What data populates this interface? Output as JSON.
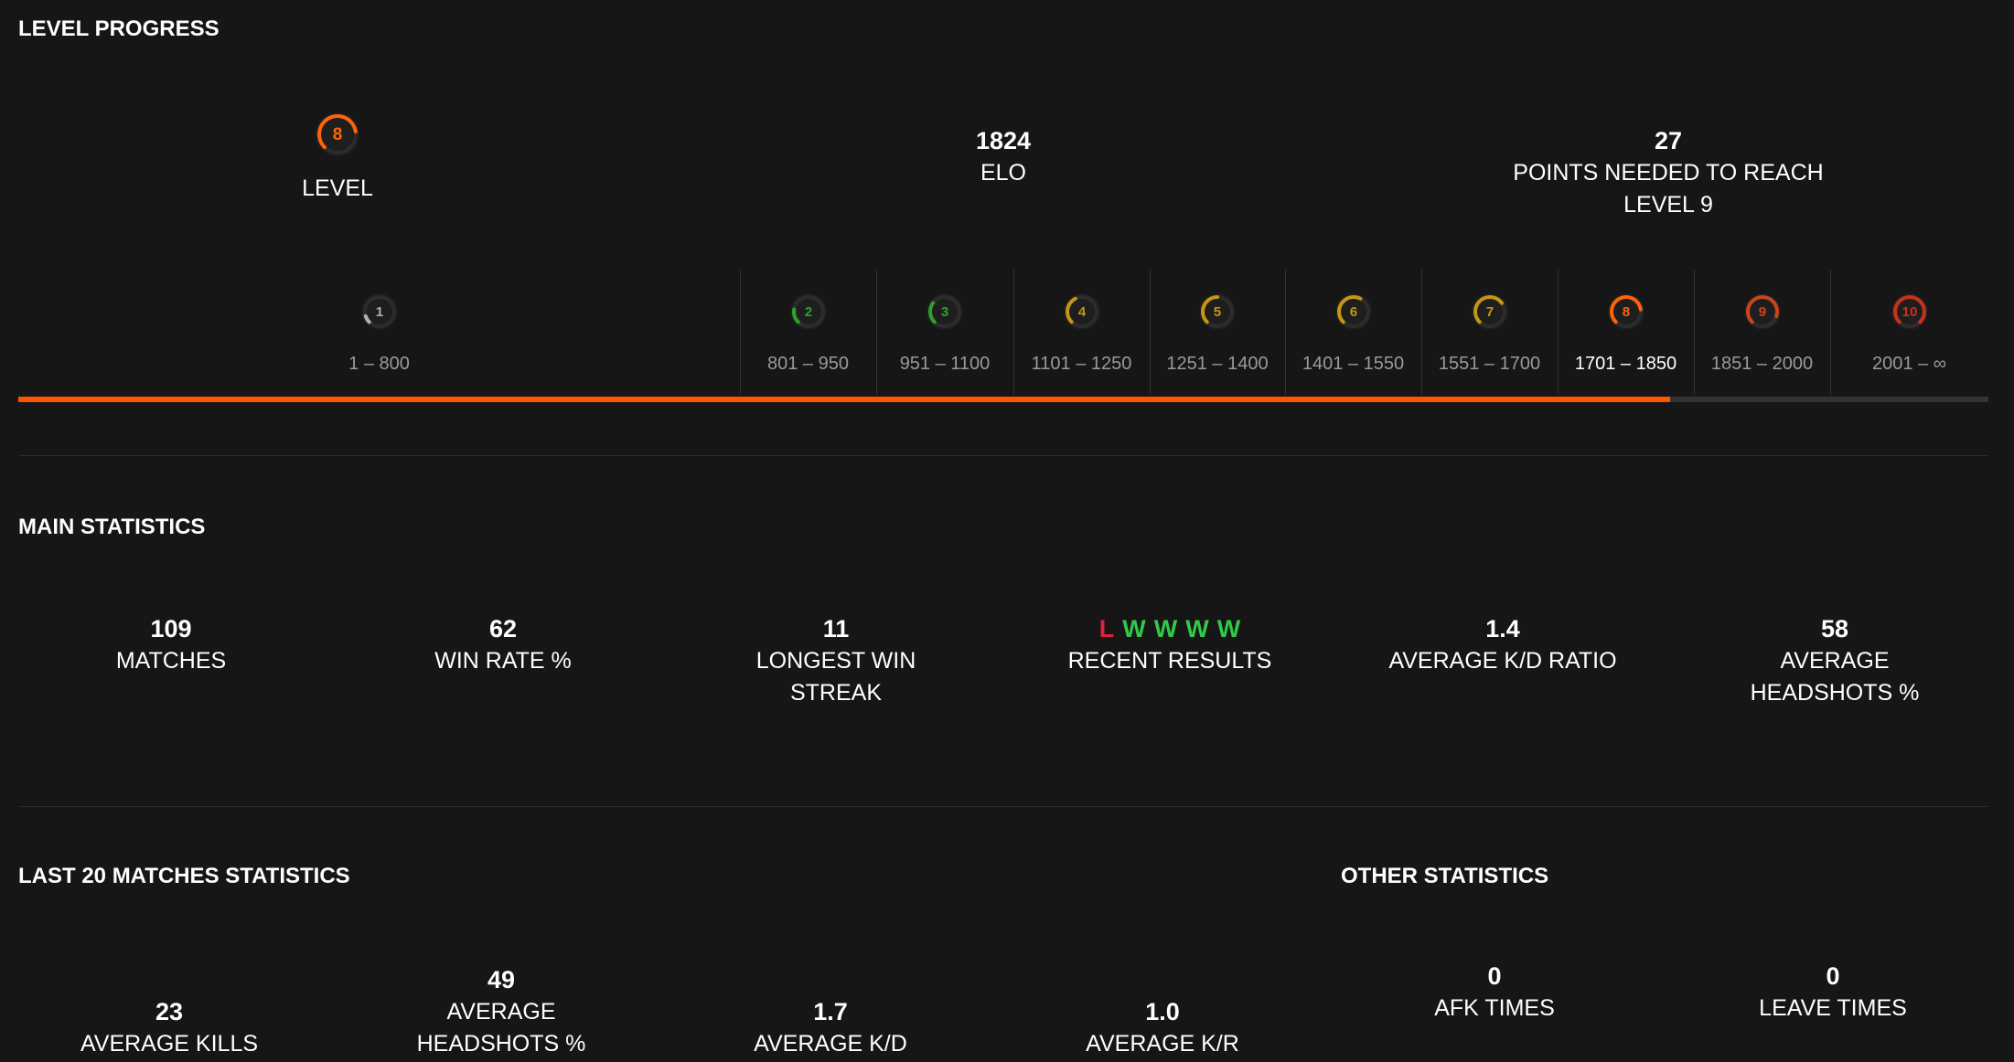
{
  "level_progress": {
    "title": "LEVEL PROGRESS",
    "level": {
      "value": 8,
      "label": "LEVEL",
      "color": "#ff6309"
    },
    "elo": {
      "value": 1824,
      "label": "ELO"
    },
    "points": {
      "value": 27,
      "label": "POINTS NEEDED TO REACH LEVEL 9"
    },
    "levels": [
      {
        "level": 1,
        "range": "1 – 800",
        "color": "#b0b0b0"
      },
      {
        "level": 2,
        "range": "801 – 950",
        "color": "#2fa12a"
      },
      {
        "level": 3,
        "range": "951 – 1100",
        "color": "#2fa12a"
      },
      {
        "level": 4,
        "range": "1101 – 1250",
        "color": "#c59514"
      },
      {
        "level": 5,
        "range": "1251 – 1400",
        "color": "#c59514"
      },
      {
        "level": 6,
        "range": "1401 – 1550",
        "color": "#c59514"
      },
      {
        "level": 7,
        "range": "1551 – 1700",
        "color": "#c59514"
      },
      {
        "level": 8,
        "range": "1701 – 1850",
        "color": "#ff6309"
      },
      {
        "level": 9,
        "range": "1851 – 2000",
        "color": "#c8461a"
      },
      {
        "level": 10,
        "range": "2001 – ∞",
        "color": "#c8321a"
      }
    ]
  },
  "main_statistics": {
    "title": "MAIN STATISTICS",
    "items": [
      {
        "value": 109,
        "label": "MATCHES"
      },
      {
        "value": 62,
        "label": "WIN RATE %"
      },
      {
        "value": 11,
        "label": "LONGEST WIN STREAK"
      },
      {
        "results": [
          {
            "text": "L",
            "color": "#e0203c"
          },
          {
            "text": "W",
            "color": "#32c94a"
          },
          {
            "text": "W",
            "color": "#32c94a"
          },
          {
            "text": "W",
            "color": "#32c94a"
          },
          {
            "text": "W",
            "color": "#32c94a"
          }
        ],
        "label": "RECENT RESULTS"
      },
      {
        "value": 1.4,
        "label": "AVERAGE K/D RATIO"
      },
      {
        "value": 58,
        "label": "AVERAGE HEADSHOTS %"
      }
    ]
  },
  "last_20_statistics": {
    "title": "LAST 20 MATCHES STATISTICS",
    "items": [
      {
        "value": 23,
        "label": "AVERAGE KILLS"
      },
      {
        "value": 49,
        "label": "AVERAGE HEADSHOTS %"
      },
      {
        "value": 1.7,
        "label": "AVERAGE K/D"
      },
      {
        "value": "1.0",
        "label": "AVERAGE K/R"
      }
    ]
  },
  "other_statistics": {
    "title": "OTHER STATISTICS",
    "items": [
      {
        "value": 0,
        "label": "AFK TIMES"
      },
      {
        "value": 0,
        "label": "LEAVE TIMES"
      }
    ]
  }
}
